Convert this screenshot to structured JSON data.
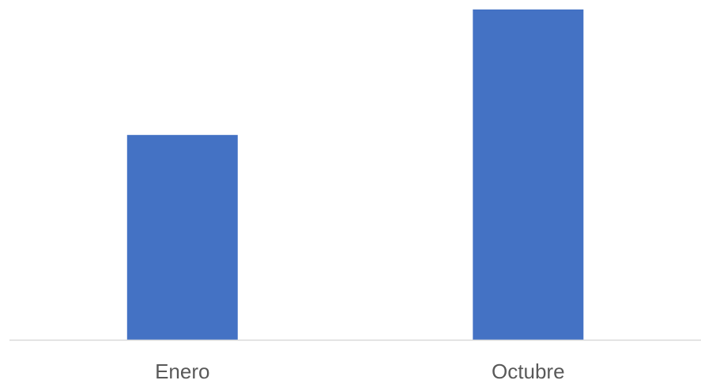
{
  "chart_data": {
    "type": "bar",
    "categories": [
      "Enero",
      "Octubre"
    ],
    "values": [
      62,
      100
    ],
    "ylim": [
      0,
      100
    ],
    "grid": false,
    "legend": "none",
    "colors": {
      "bar": "#4472C4",
      "axis": "#D9D9D9",
      "label": "#595959",
      "background": "#FFFFFF"
    }
  }
}
